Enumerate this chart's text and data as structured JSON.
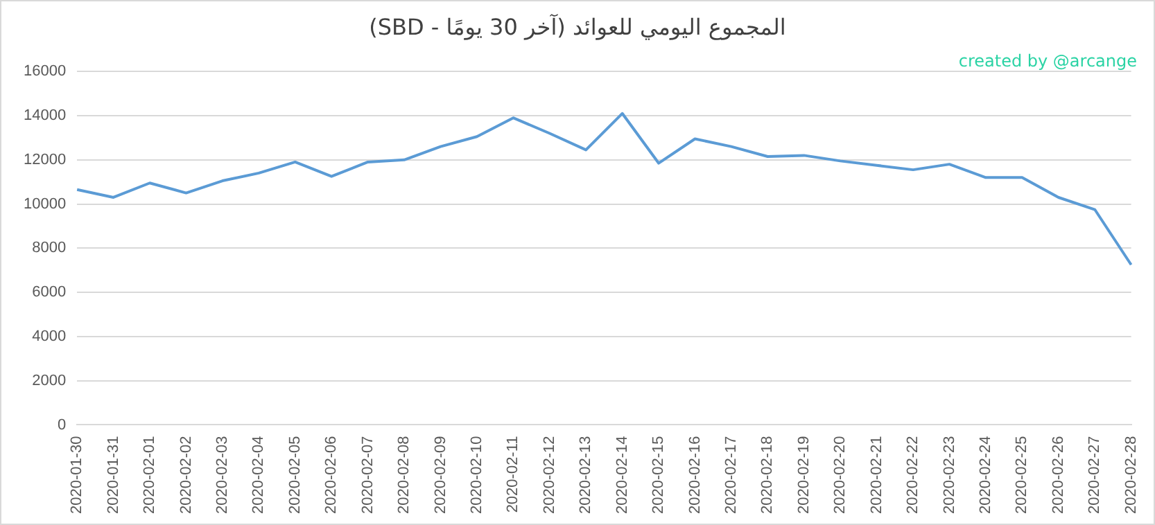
{
  "chart_data": {
    "type": "line",
    "title": "المجموع اليومي للعوائد (آخر 30 يومًا - SBD)",
    "annotations": [
      "created by @arcange"
    ],
    "categories": [
      "2020-01-30",
      "2020-01-31",
      "2020-02-01",
      "2020-02-02",
      "2020-02-03",
      "2020-02-04",
      "2020-02-05",
      "2020-02-06",
      "2020-02-07",
      "2020-02-08",
      "2020-02-09",
      "2020-02-10",
      "2020-02-11",
      "2020-02-12",
      "2020-02-13",
      "2020-02-14",
      "2020-02-15",
      "2020-02-16",
      "2020-02-17",
      "2020-02-18",
      "2020-02-19",
      "2020-02-20",
      "2020-02-21",
      "2020-02-22",
      "2020-02-23",
      "2020-02-24",
      "2020-02-25",
      "2020-02-26",
      "2020-02-27",
      "2020-02-28"
    ],
    "series": [
      {
        "color": "#5b9bd5",
        "values": [
          10650,
          10300,
          10950,
          10500,
          11050,
          11400,
          11900,
          11250,
          11900,
          12000,
          12600,
          13050,
          13900,
          13200,
          12450,
          14100,
          11850,
          12950,
          12600,
          12150,
          12200,
          11950,
          11750,
          11550,
          11800,
          11200,
          11200,
          10300,
          9750,
          7250
        ]
      }
    ],
    "ylim": [
      0,
      16000
    ],
    "yticks": [
      0,
      2000,
      4000,
      6000,
      8000,
      10000,
      12000,
      14000,
      16000
    ],
    "grid": "y",
    "legend": false,
    "marker": "none",
    "line_style": "solid"
  }
}
